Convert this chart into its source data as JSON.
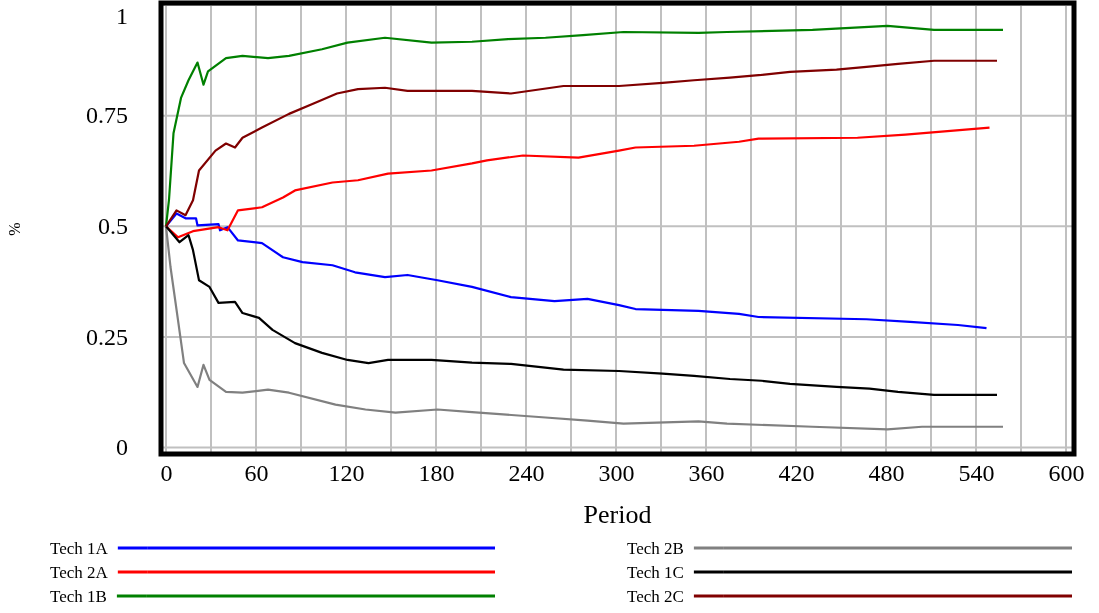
{
  "chart_data": {
    "type": "line",
    "xlabel": "Period",
    "ylabel": "%",
    "xlim": [
      -2,
      604
    ],
    "ylim": [
      -0.01,
      1
    ],
    "xticks": [
      0,
      {
        "value": 30,
        "label": null
      },
      60,
      {
        "value": 90,
        "label": null
      },
      120,
      {
        "value": 150,
        "label": null
      },
      180,
      {
        "value": 210,
        "label": null
      },
      240,
      {
        "value": 270,
        "label": null
      },
      300,
      {
        "value": 330,
        "label": null
      },
      360,
      {
        "value": 390,
        "label": null
      },
      420,
      {
        "value": 450,
        "label": null
      },
      480,
      {
        "value": 510,
        "label": null
      },
      540,
      {
        "value": 570,
        "label": null
      },
      600
    ],
    "yticks": [
      0,
      0.25,
      0.5,
      0.75,
      1
    ],
    "grid": true,
    "legend": "bottom",
    "line_style": "solid",
    "marker": "none",
    "series": [
      {
        "name": "Tech 1A",
        "color": "#0000ff",
        "x": [
          0,
          7,
          13,
          20,
          21,
          35,
          36,
          41,
          48,
          64,
          78,
          91,
          111,
          126,
          146,
          161,
          181,
          204,
          230,
          259,
          281,
          302,
          313,
          355,
          382,
          395,
          467,
          496,
          528,
          547
        ],
        "values": [
          0.5,
          0.529,
          0.518,
          0.518,
          0.502,
          0.505,
          0.491,
          0.498,
          0.468,
          0.462,
          0.43,
          0.419,
          0.412,
          0.396,
          0.385,
          0.39,
          0.378,
          0.363,
          0.34,
          0.331,
          0.336,
          0.322,
          0.313,
          0.309,
          0.302,
          0.295,
          0.29,
          0.284,
          0.277,
          0.27
        ]
      },
      {
        "name": "Tech 2A",
        "color": "#ff0000",
        "x": [
          0,
          8,
          18,
          35,
          41,
          48,
          64,
          78,
          86,
          111,
          128,
          148,
          177,
          204,
          214,
          238,
          275,
          302,
          313,
          352,
          382,
          395,
          461,
          493,
          525,
          549
        ],
        "values": [
          0.5,
          0.475,
          0.489,
          0.498,
          0.491,
          0.536,
          0.543,
          0.565,
          0.581,
          0.599,
          0.604,
          0.619,
          0.626,
          0.642,
          0.649,
          0.66,
          0.655,
          0.671,
          0.678,
          0.682,
          0.691,
          0.698,
          0.7,
          0.707,
          0.716,
          0.723
        ]
      },
      {
        "name": "Tech 1B",
        "color": "#008000",
        "x": [
          0,
          2,
          5,
          10,
          15,
          21,
          25,
          28,
          40,
          51,
          68,
          82,
          104,
          121,
          146,
          177,
          204,
          228,
          253,
          278,
          305,
          355,
          374,
          431,
          481,
          512,
          558
        ],
        "values": [
          0.5,
          0.56,
          0.71,
          0.79,
          0.83,
          0.87,
          0.82,
          0.85,
          0.88,
          0.885,
          0.88,
          0.885,
          0.9,
          0.915,
          0.926,
          0.915,
          0.917,
          0.923,
          0.926,
          0.932,
          0.939,
          0.937,
          0.939,
          0.944,
          0.953,
          0.944,
          0.944
        ]
      },
      {
        "name": "Tech 2B",
        "color": "#808080",
        "x": [
          0,
          3,
          8,
          12,
          21,
          25,
          29,
          40,
          51,
          68,
          82,
          113,
          133,
          153,
          181,
          204,
          253,
          281,
          305,
          355,
          374,
          431,
          481,
          504,
          558
        ],
        "values": [
          0.5,
          0.408,
          0.288,
          0.191,
          0.137,
          0.187,
          0.153,
          0.126,
          0.124,
          0.131,
          0.124,
          0.097,
          0.086,
          0.079,
          0.086,
          0.08,
          0.068,
          0.061,
          0.054,
          0.059,
          0.054,
          0.047,
          0.041,
          0.047,
          0.047
        ]
      },
      {
        "name": "Tech 1C",
        "color": "#000000",
        "x": [
          0,
          9,
          15,
          18,
          22,
          29,
          35,
          46,
          51,
          62,
          71,
          86,
          104,
          121,
          135,
          148,
          177,
          204,
          230,
          265,
          302,
          331,
          352,
          376,
          397,
          416,
          447,
          469,
          488,
          512,
          554
        ],
        "values": [
          0.5,
          0.464,
          0.48,
          0.446,
          0.378,
          0.363,
          0.327,
          0.329,
          0.304,
          0.293,
          0.266,
          0.236,
          0.214,
          0.198,
          0.191,
          0.198,
          0.198,
          0.192,
          0.189,
          0.176,
          0.173,
          0.167,
          0.162,
          0.155,
          0.151,
          0.144,
          0.137,
          0.133,
          0.126,
          0.119,
          0.119
        ]
      },
      {
        "name": "Tech 2C",
        "color": "#800000",
        "x": [
          0,
          7,
          13,
          18,
          22,
          33,
          40,
          46,
          51,
          64,
          82,
          98,
          114,
          128,
          146,
          161,
          204,
          230,
          265,
          302,
          331,
          352,
          376,
          397,
          416,
          447,
          467,
          488,
          512,
          554
        ],
        "values": [
          0.5,
          0.536,
          0.525,
          0.559,
          0.626,
          0.671,
          0.687,
          0.678,
          0.7,
          0.723,
          0.754,
          0.777,
          0.8,
          0.81,
          0.813,
          0.806,
          0.806,
          0.8,
          0.817,
          0.817,
          0.824,
          0.83,
          0.836,
          0.842,
          0.849,
          0.854,
          0.86,
          0.867,
          0.874,
          0.874
        ]
      }
    ]
  }
}
